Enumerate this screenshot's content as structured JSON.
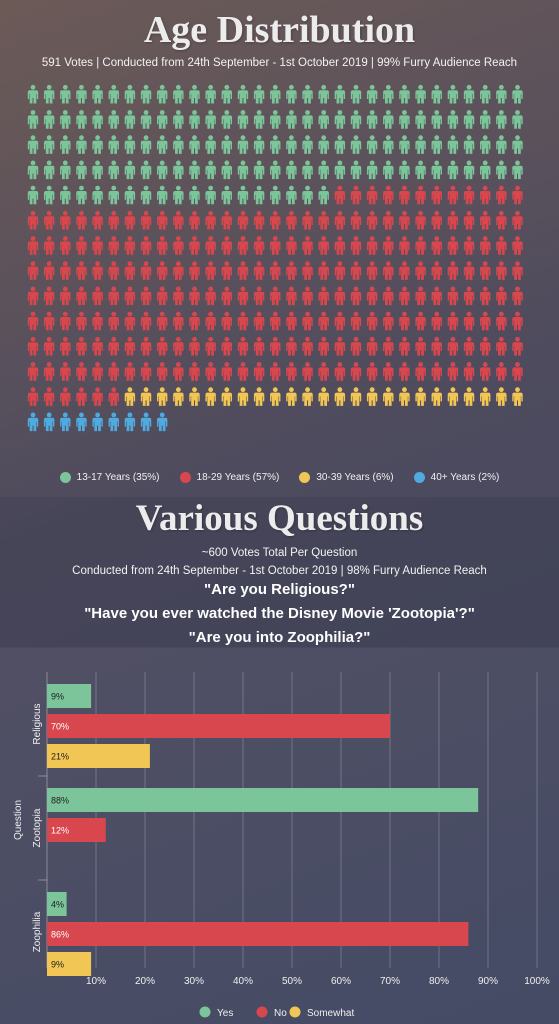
{
  "age": {
    "title": "Age Distribution",
    "subtitle": "591 Votes | Conducted from 24th September - 1st October 2019 | 99% Furry Audience Reach",
    "legend": [
      {
        "label": "13-17 Years (35%)",
        "color": "#7cc49a"
      },
      {
        "label": "18-29 Years (57%)",
        "color": "#d9474e"
      },
      {
        "label": "30-39 Years (6%)",
        "color": "#f2c655"
      },
      {
        "label": "40+ Years (2%)",
        "color": "#4faadf"
      }
    ]
  },
  "questions": {
    "title": "Various Questions",
    "subtitle1": "~600 Votes Total Per Question",
    "subtitle2": "Conducted from 24th September - 1st October 2019 | 98% Furry Audience Reach",
    "q1": "\"Are you Religious?\"",
    "q2": "\"Have you ever watched the Disney Movie 'Zootopia'?\"",
    "q3": "\"Are you into Zoophilia?\""
  },
  "chart_data": [
    {
      "type": "pictograph",
      "title": "Age Distribution",
      "categories": [
        "13-17 Years",
        "18-29 Years",
        "30-39 Years",
        "40+ Years"
      ],
      "values": [
        35,
        57,
        6,
        2
      ],
      "unit": "%",
      "icons_per_category": [
        143,
        235,
        25,
        9
      ],
      "icon_grid": {
        "columns": 31,
        "rows": 14
      },
      "colors": [
        "#7cc49a",
        "#d9474e",
        "#f2c655",
        "#4faadf"
      ]
    },
    {
      "type": "bar",
      "orientation": "horizontal",
      "ylabel": "Question",
      "categories": [
        "Religious",
        "Zootopia",
        "Zoophilia"
      ],
      "series": [
        {
          "name": "Yes",
          "color": "#7cc49a",
          "values": [
            9,
            88,
            4
          ]
        },
        {
          "name": "No",
          "color": "#d9474e",
          "values": [
            70,
            12,
            86
          ]
        },
        {
          "name": "Somewhat",
          "color": "#f2c655",
          "values": [
            21,
            null,
            9
          ]
        }
      ],
      "value_labels": {
        "Religious": [
          "9%",
          "70%",
          "21%"
        ],
        "Zootopia": [
          "88%",
          "12%"
        ],
        "Zoophilia": [
          "4%",
          "86%",
          "9%"
        ]
      },
      "xticks": [
        "10%",
        "20%",
        "30%",
        "40%",
        "50%",
        "60%",
        "70%",
        "80%",
        "90%",
        "100%"
      ],
      "xlim": [
        0,
        100
      ],
      "grid": true,
      "legend_position": "bottom"
    }
  ]
}
